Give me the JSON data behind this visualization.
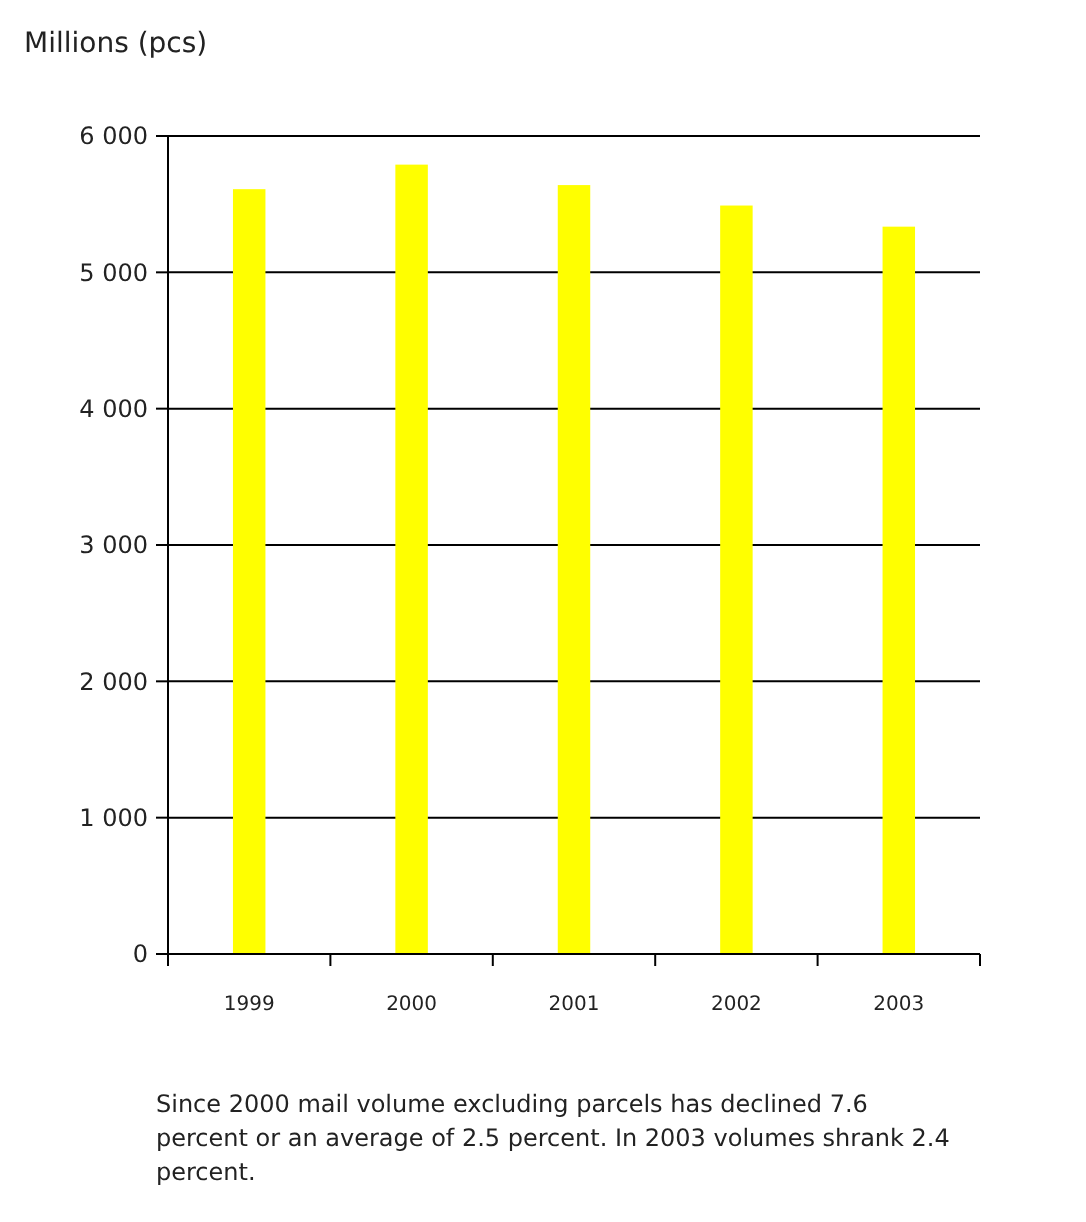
{
  "chart_data": {
    "type": "bar",
    "ylabel": "Millions (pcs)",
    "categories": [
      "1999",
      "2000",
      "2001",
      "2002",
      "2003"
    ],
    "values": [
      5610,
      5790,
      5640,
      5490,
      5335
    ],
    "color": "#ffff00",
    "ylim": [
      0,
      6000
    ],
    "yticks": [
      {
        "value": 0,
        "label": "0"
      },
      {
        "value": 1000,
        "label": "1 000"
      },
      {
        "value": 2000,
        "label": "2 000"
      },
      {
        "value": 3000,
        "label": "3 000"
      },
      {
        "value": 4000,
        "label": "4 000"
      },
      {
        "value": 5000,
        "label": "5 000"
      },
      {
        "value": 6000,
        "label": "6 000"
      }
    ],
    "grid": "y",
    "annotations": [
      "Since 2000 mail volume excluding parcels has declined 7.6 percent or an average of 2.5 percent. In 2003 volumes shrank 2.4 percent."
    ]
  }
}
